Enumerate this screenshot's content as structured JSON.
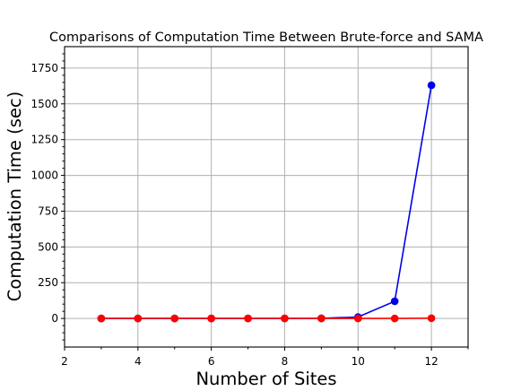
{
  "chart_data": {
    "type": "line",
    "title": "Comparisons of Computation Time Between Brute-force and SAMA",
    "xlabel": "Number of Sites",
    "ylabel": "Computation Time (sec)",
    "xlim": [
      2,
      13
    ],
    "ylim": [
      -200,
      1900
    ],
    "xticks": [
      "2",
      "4",
      "6",
      "8",
      "10",
      "12"
    ],
    "yticks": [
      "0",
      "250",
      "500",
      "750",
      "1000",
      "1250",
      "1500",
      "1750"
    ],
    "grid": true,
    "x": [
      3,
      4,
      5,
      6,
      7,
      8,
      9,
      10,
      11,
      12
    ],
    "series": [
      {
        "color": "#0000ee",
        "values": [
          0,
          0,
          0,
          0,
          0,
          0.5,
          1,
          10,
          120,
          1630
        ]
      },
      {
        "color": "#ff0000",
        "values": [
          0,
          0,
          0,
          0,
          0,
          0,
          0,
          0,
          0,
          2
        ]
      }
    ]
  }
}
